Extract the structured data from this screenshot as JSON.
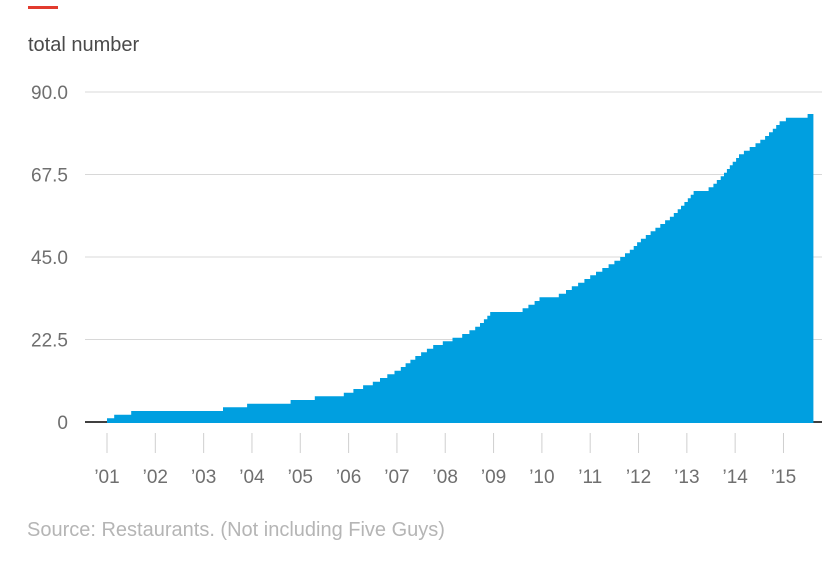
{
  "chart_data": {
    "type": "area",
    "title": "total number",
    "source_note": "Source: Restaurants. (Not including Five Guys)",
    "legend": "none",
    "grid": "horizontal",
    "ylim": [
      0,
      90
    ],
    "xlim": [
      2000.54,
      2015.8
    ],
    "y_ticks": [
      0,
      22.5,
      45.0,
      67.5,
      90.0
    ],
    "y_tick_labels": [
      "0",
      "22.5",
      "45.0",
      "67.5",
      "90.0"
    ],
    "x_ticks_years": [
      2001,
      2002,
      2003,
      2004,
      2005,
      2006,
      2007,
      2008,
      2009,
      2010,
      2011,
      2012,
      2013,
      2014,
      2015
    ],
    "x_tick_labels": [
      "’01",
      "’02",
      "’03",
      "’04",
      "’05",
      "’06",
      "’07",
      "’08",
      "’09",
      "’10",
      "’11",
      "’12",
      "’13",
      "’14",
      "’15"
    ],
    "series_name": "total number of restaurants",
    "steps": [
      [
        2001.0,
        1
      ],
      [
        2001.15,
        2
      ],
      [
        2001.5,
        3
      ],
      [
        2003.4,
        4
      ],
      [
        2003.9,
        5
      ],
      [
        2004.8,
        6
      ],
      [
        2005.3,
        7
      ],
      [
        2005.9,
        8
      ],
      [
        2006.1,
        9
      ],
      [
        2006.3,
        10
      ],
      [
        2006.5,
        11
      ],
      [
        2006.65,
        12
      ],
      [
        2006.8,
        13
      ],
      [
        2006.95,
        14
      ],
      [
        2007.08,
        15
      ],
      [
        2007.18,
        16
      ],
      [
        2007.28,
        17
      ],
      [
        2007.38,
        18
      ],
      [
        2007.5,
        19
      ],
      [
        2007.62,
        20
      ],
      [
        2007.75,
        21
      ],
      [
        2007.95,
        22
      ],
      [
        2008.15,
        23
      ],
      [
        2008.35,
        24
      ],
      [
        2008.5,
        25
      ],
      [
        2008.62,
        26
      ],
      [
        2008.72,
        27
      ],
      [
        2008.8,
        28
      ],
      [
        2008.87,
        29
      ],
      [
        2008.93,
        30
      ],
      [
        2009.6,
        31
      ],
      [
        2009.72,
        32
      ],
      [
        2009.85,
        33
      ],
      [
        2009.95,
        34
      ],
      [
        2010.35,
        35
      ],
      [
        2010.5,
        36
      ],
      [
        2010.62,
        37
      ],
      [
        2010.75,
        38
      ],
      [
        2010.88,
        39
      ],
      [
        2011.0,
        40
      ],
      [
        2011.12,
        41
      ],
      [
        2011.25,
        42
      ],
      [
        2011.38,
        43
      ],
      [
        2011.5,
        44
      ],
      [
        2011.62,
        45
      ],
      [
        2011.72,
        46
      ],
      [
        2011.82,
        47
      ],
      [
        2011.9,
        48
      ],
      [
        2011.97,
        49
      ],
      [
        2012.05,
        50
      ],
      [
        2012.15,
        51
      ],
      [
        2012.25,
        52
      ],
      [
        2012.35,
        53
      ],
      [
        2012.45,
        54
      ],
      [
        2012.55,
        55
      ],
      [
        2012.65,
        56
      ],
      [
        2012.73,
        57
      ],
      [
        2012.81,
        58
      ],
      [
        2012.88,
        59
      ],
      [
        2012.95,
        60
      ],
      [
        2013.02,
        61
      ],
      [
        2013.08,
        62
      ],
      [
        2013.14,
        63
      ],
      [
        2013.45,
        64
      ],
      [
        2013.55,
        65
      ],
      [
        2013.62,
        66
      ],
      [
        2013.7,
        67
      ],
      [
        2013.77,
        68
      ],
      [
        2013.83,
        69
      ],
      [
        2013.89,
        70
      ],
      [
        2013.95,
        71
      ],
      [
        2014.02,
        72
      ],
      [
        2014.08,
        73
      ],
      [
        2014.18,
        74
      ],
      [
        2014.3,
        75
      ],
      [
        2014.42,
        76
      ],
      [
        2014.52,
        77
      ],
      [
        2014.62,
        78
      ],
      [
        2014.7,
        79
      ],
      [
        2014.78,
        80
      ],
      [
        2014.85,
        81
      ],
      [
        2014.92,
        82
      ],
      [
        2015.05,
        83
      ],
      [
        2015.5,
        84
      ]
    ],
    "series_start_year": 2001.0,
    "series_end_year": 2015.62,
    "final_value": 84,
    "colors": {
      "area": "#009fe0",
      "gridline": "#d8d8d8",
      "baseline": "#404040",
      "tick": "#cfcfcf",
      "axis_label": "#6f6f6f",
      "title": "#4a4a4a",
      "source": "#b5b5b5",
      "accent": "#e23b2e"
    }
  }
}
